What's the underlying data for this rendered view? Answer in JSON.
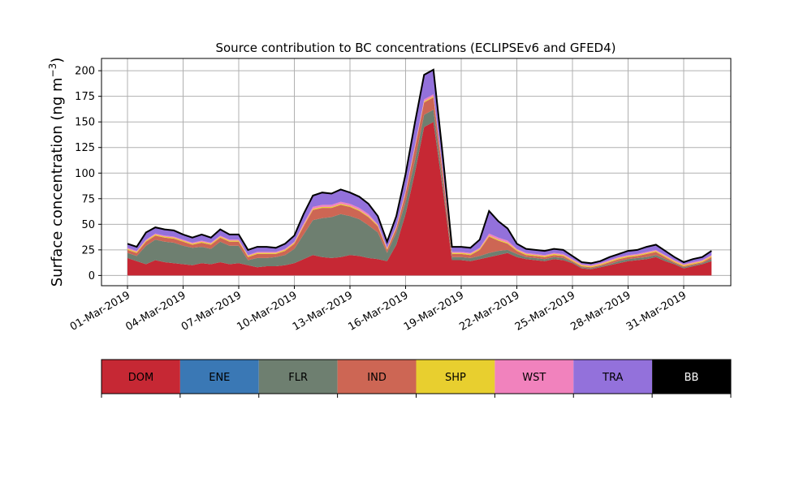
{
  "chart_data": {
    "type": "area",
    "stacked": true,
    "title": "Source contribution to BC concentrations (ECLIPSEv6 and GFED4)",
    "ylabel": "Surface concentration (ng m",
    "ylabel_exponent": "−3",
    "ylabel_close": ")",
    "xlabel": "",
    "ylim": [
      -10,
      212
    ],
    "xlim_days": [
      0.0,
      1.0
    ],
    "grid": true,
    "yticks": [
      0,
      25,
      50,
      75,
      100,
      125,
      150,
      175,
      200
    ],
    "ytick_labels": [
      "0",
      "25",
      "50",
      "75",
      "100",
      "125",
      "150",
      "175",
      "200"
    ],
    "xticks": [
      {
        "label": "01-Mar-2019",
        "date": "2019-03-01"
      },
      {
        "label": "04-Mar-2019",
        "date": "2019-03-04"
      },
      {
        "label": "07-Mar-2019",
        "date": "2019-03-07"
      },
      {
        "label": "10-Mar-2019",
        "date": "2019-03-10"
      },
      {
        "label": "13-Mar-2019",
        "date": "2019-03-13"
      },
      {
        "label": "16-Mar-2019",
        "date": "2019-03-16"
      },
      {
        "label": "19-Mar-2019",
        "date": "2019-03-19"
      },
      {
        "label": "22-Mar-2019",
        "date": "2019-03-22"
      },
      {
        "label": "25-Mar-2019",
        "date": "2019-03-25"
      },
      {
        "label": "28-Mar-2019",
        "date": "2019-03-28"
      },
      {
        "label": "31-Mar-2019",
        "date": "2019-03-31"
      }
    ],
    "x": [
      "2019-03-01",
      "2019-03-01T12",
      "2019-03-02",
      "2019-03-02T12",
      "2019-03-03",
      "2019-03-03T12",
      "2019-03-04",
      "2019-03-04T12",
      "2019-03-05",
      "2019-03-05T12",
      "2019-03-06",
      "2019-03-06T12",
      "2019-03-07",
      "2019-03-07T12",
      "2019-03-08",
      "2019-03-08T12",
      "2019-03-09",
      "2019-03-09T12",
      "2019-03-10",
      "2019-03-10T12",
      "2019-03-11",
      "2019-03-11T12",
      "2019-03-12",
      "2019-03-12T12",
      "2019-03-13",
      "2019-03-13T12",
      "2019-03-14",
      "2019-03-14T12",
      "2019-03-15",
      "2019-03-15T12",
      "2019-03-16",
      "2019-03-16T12",
      "2019-03-17",
      "2019-03-17T12",
      "2019-03-18",
      "2019-03-18T12",
      "2019-03-19",
      "2019-03-19T12",
      "2019-03-20",
      "2019-03-20T12",
      "2019-03-21",
      "2019-03-21T12",
      "2019-03-22",
      "2019-03-22T12",
      "2019-03-23",
      "2019-03-23T12",
      "2019-03-24",
      "2019-03-24T12",
      "2019-03-25",
      "2019-03-25T12",
      "2019-03-26",
      "2019-03-26T12",
      "2019-03-27",
      "2019-03-27T12",
      "2019-03-28",
      "2019-03-28T12",
      "2019-03-29",
      "2019-03-29T12",
      "2019-03-30",
      "2019-03-30T12",
      "2019-03-31",
      "2019-03-31T12",
      "2019-04-01",
      "2019-04-01T12"
    ],
    "series": [
      {
        "name": "DOM",
        "color": "#c62834",
        "values": [
          17,
          14,
          11,
          15,
          13,
          12,
          11,
          10,
          12,
          11,
          13,
          11,
          12,
          10,
          8,
          9,
          9,
          10,
          12,
          16,
          20,
          18,
          17,
          18,
          20,
          19,
          17,
          16,
          14,
          30,
          60,
          100,
          145,
          150,
          85,
          15,
          15,
          14,
          16,
          18,
          20,
          22,
          18,
          16,
          15,
          14,
          16,
          15,
          12,
          7,
          6,
          8,
          10,
          12,
          14,
          15,
          16,
          18,
          14,
          11,
          7,
          9,
          11,
          14
        ]
      },
      {
        "name": "ENE",
        "color": "#3a78b5",
        "values": [
          0,
          0,
          0,
          0,
          0,
          0,
          0,
          0,
          0,
          0,
          0,
          0,
          0,
          0,
          0,
          0,
          0,
          0,
          0,
          0,
          0,
          0,
          0,
          0,
          0,
          0,
          0,
          0,
          0,
          0,
          0,
          0,
          0,
          0,
          0,
          0,
          0,
          0,
          0,
          0,
          0,
          0,
          0,
          0,
          0,
          0,
          0,
          0,
          0,
          0,
          0,
          0,
          0,
          0,
          0,
          0,
          0,
          0,
          0,
          0,
          0,
          0,
          0,
          0
        ]
      },
      {
        "name": "FLR",
        "color": "#6e7f70",
        "values": [
          5,
          5,
          18,
          20,
          20,
          20,
          18,
          17,
          16,
          15,
          20,
          18,
          17,
          5,
          9,
          8,
          9,
          10,
          14,
          24,
          34,
          38,
          40,
          42,
          38,
          36,
          32,
          26,
          8,
          12,
          12,
          12,
          12,
          12,
          6,
          3,
          3,
          3,
          3,
          4,
          4,
          3,
          3,
          2,
          2,
          2,
          2,
          2,
          1,
          1,
          1,
          1,
          1,
          2,
          2,
          2,
          2,
          2,
          2,
          1,
          1,
          1,
          1,
          2
        ]
      },
      {
        "name": "IND",
        "color": "#cd6654",
        "values": [
          3,
          3,
          4,
          4,
          4,
          4,
          4,
          3,
          4,
          4,
          4,
          4,
          4,
          3,
          4,
          4,
          3,
          4,
          5,
          8,
          10,
          10,
          9,
          9,
          9,
          8,
          8,
          6,
          3,
          4,
          8,
          12,
          12,
          12,
          10,
          3,
          3,
          3,
          6,
          16,
          10,
          6,
          3,
          2,
          2,
          2,
          2,
          2,
          1,
          1,
          1,
          1,
          2,
          2,
          2,
          2,
          3,
          3,
          2,
          1,
          1,
          1,
          1,
          2
        ]
      },
      {
        "name": "SHP",
        "color": "#e8cf2f",
        "values": [
          1,
          1,
          1,
          1,
          1,
          1,
          1,
          1,
          1,
          1,
          1,
          1,
          1,
          1,
          1,
          1,
          1,
          1,
          1,
          1,
          1,
          1,
          1,
          1,
          1,
          1,
          1,
          1,
          1,
          1,
          1,
          1,
          1,
          1,
          1,
          1,
          1,
          1,
          1,
          1,
          1,
          1,
          1,
          1,
          1,
          1,
          1,
          1,
          1,
          1,
          1,
          1,
          1,
          1,
          1,
          1,
          1,
          1,
          1,
          1,
          1,
          1,
          1,
          1
        ]
      },
      {
        "name": "WST",
        "color": "#f182bd",
        "values": [
          1,
          1,
          1,
          1,
          1,
          1,
          1,
          1,
          1,
          1,
          1,
          1,
          1,
          1,
          1,
          1,
          1,
          1,
          1,
          2,
          2,
          2,
          2,
          2,
          2,
          2,
          2,
          1,
          1,
          1,
          2,
          2,
          2,
          2,
          2,
          1,
          1,
          1,
          1,
          2,
          2,
          2,
          1,
          1,
          1,
          1,
          1,
          1,
          1,
          1,
          1,
          1,
          1,
          1,
          1,
          1,
          1,
          1,
          1,
          1,
          1,
          1,
          1,
          1
        ]
      },
      {
        "name": "TRA",
        "color": "#9371db",
        "values": [
          4,
          4,
          7,
          6,
          6,
          6,
          5,
          5,
          6,
          5,
          6,
          5,
          5,
          5,
          5,
          5,
          4,
          5,
          6,
          9,
          11,
          12,
          11,
          12,
          11,
          11,
          10,
          8,
          6,
          10,
          16,
          22,
          24,
          24,
          14,
          5,
          5,
          5,
          8,
          22,
          16,
          12,
          5,
          4,
          4,
          4,
          4,
          4,
          3,
          2,
          2,
          2,
          3,
          3,
          4,
          4,
          5,
          5,
          4,
          3,
          2,
          3,
          3,
          4
        ]
      },
      {
        "name": "BB",
        "color": "#000000",
        "values": [
          0,
          0,
          0,
          0,
          0,
          0,
          0,
          0,
          0,
          0,
          0,
          0,
          0,
          0,
          0,
          0,
          0,
          0,
          0,
          0,
          0,
          0,
          0,
          0,
          0,
          0,
          0,
          0,
          0,
          0,
          0,
          0,
          0,
          0,
          0,
          0,
          0,
          0,
          0,
          0,
          0,
          0,
          0,
          0,
          0,
          0,
          0,
          0,
          0,
          0,
          0,
          0,
          0,
          0,
          0,
          0,
          0,
          0,
          0,
          0,
          0,
          0,
          0,
          0
        ]
      }
    ],
    "legend": {
      "placement": "colorbar-below",
      "items": [
        {
          "label": "DOM",
          "color": "#c62834",
          "text_color": "#000000"
        },
        {
          "label": "ENE",
          "color": "#3a78b5",
          "text_color": "#000000"
        },
        {
          "label": "FLR",
          "color": "#6e7f70",
          "text_color": "#000000"
        },
        {
          "label": "IND",
          "color": "#cd6654",
          "text_color": "#000000"
        },
        {
          "label": "SHP",
          "color": "#e8cf2f",
          "text_color": "#000000"
        },
        {
          "label": "WST",
          "color": "#f182bd",
          "text_color": "#000000"
        },
        {
          "label": "TRA",
          "color": "#9371db",
          "text_color": "#000000"
        },
        {
          "label": "BB",
          "color": "#000000",
          "text_color": "#ffffff"
        }
      ]
    }
  }
}
